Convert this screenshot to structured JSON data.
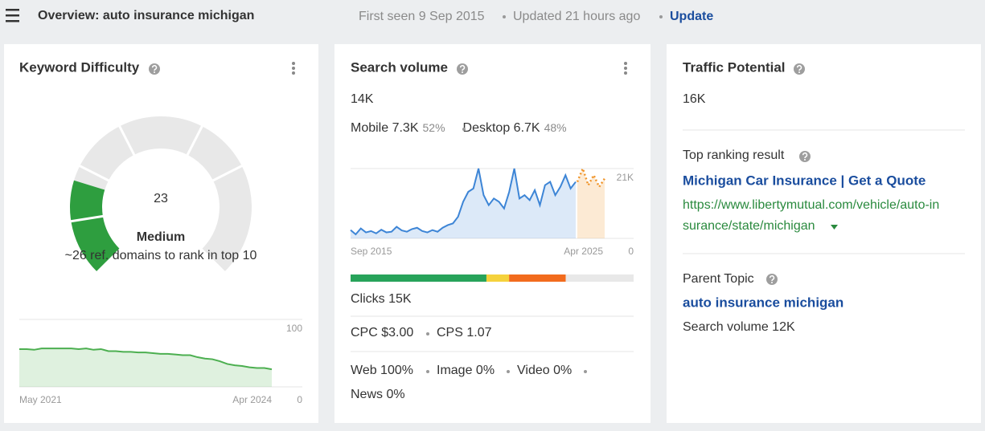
{
  "header": {
    "title": "Overview: auto insurance michigan",
    "first_seen": "First seen 9 Sep 2015",
    "updated": "Updated 21 hours ago",
    "update_link": "Update"
  },
  "keyword_difficulty": {
    "title": "Keyword Difficulty",
    "score": 23,
    "label": "Medium",
    "note": "~26 ref. domains to rank in top 10",
    "history": {
      "type": "area",
      "x_labels": [
        "May 2021",
        "Apr 2024"
      ],
      "ylim": [
        0,
        100
      ],
      "yticks": [
        100,
        0
      ],
      "color": "#4caf50",
      "values": [
        56,
        56,
        55,
        57,
        57,
        57,
        57,
        57,
        56,
        57,
        55,
        56,
        53,
        53,
        52,
        52,
        51,
        51,
        50,
        49,
        49,
        48,
        47,
        47,
        44,
        42,
        41,
        38,
        34,
        32,
        31,
        29,
        28,
        28,
        26
      ]
    }
  },
  "search_volume": {
    "title": "Search volume",
    "volume": "14K",
    "mobile": "Mobile 7.3K",
    "mobile_share": "52%",
    "desktop": "Desktop 6.7K",
    "desktop_share": "48%",
    "history": {
      "type": "area",
      "x_labels": [
        "Sep 2015",
        "Apr 2025"
      ],
      "ylim": [
        0,
        21000
      ],
      "yticks": [
        {
          "value": 21000,
          "label": "21K"
        },
        0
      ],
      "color": "#3d85d6",
      "forecast_color": "#f0952a",
      "values": [
        2500,
        1200,
        3000,
        1800,
        2200,
        1500,
        2600,
        1800,
        2000,
        3500,
        2400,
        2000,
        2800,
        3200,
        2200,
        1800,
        2500,
        2000,
        3200,
        4000,
        4500,
        6500,
        11000,
        14000,
        15000,
        21000,
        13000,
        10000,
        12000,
        11000,
        9000,
        14000,
        21000,
        12000,
        13000,
        11500,
        14500,
        10000,
        16000,
        17000,
        13000,
        15500,
        19000,
        15000,
        17000
      ],
      "forecast_values": [
        17000,
        21000,
        16000,
        19000,
        15500,
        18000
      ]
    },
    "click_distribution": [
      {
        "color": "#27a35a",
        "value": 48
      },
      {
        "color": "#f5d23c",
        "value": 8
      },
      {
        "color": "#f26b1d",
        "value": 20
      },
      {
        "color": "#e8e8e8",
        "value": 24
      }
    ],
    "clicks": "Clicks 15K",
    "cpc": "CPC $3.00",
    "cps": "CPS 1.07",
    "serp_types": [
      "Web 100%",
      "Image 0%",
      "Video 0%",
      "News 0%"
    ]
  },
  "traffic_potential": {
    "title": "Traffic Potential",
    "value": "16K",
    "top_result_heading": "Top ranking result",
    "top_result_title": "Michigan Car Insurance | Get a Quote",
    "top_result_url_lines": [
      "https://www.libertymutual.com/vehicle/auto-in",
      "surance/state/michigan"
    ],
    "parent_topic_heading": "Parent Topic",
    "parent_topic": "auto insurance michigan",
    "parent_topic_volume": "Search volume 12K"
  }
}
